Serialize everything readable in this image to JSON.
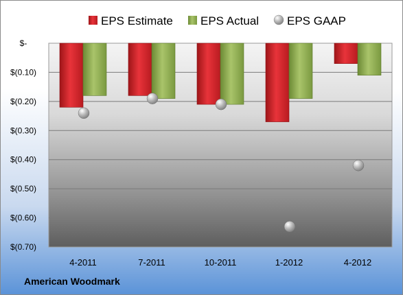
{
  "company": "American Woodmark",
  "chart_data": {
    "type": "bar",
    "categories": [
      "4-2011",
      "7-2011",
      "10-2011",
      "1-2012",
      "4-2012"
    ],
    "series": [
      {
        "name": "EPS Estimate",
        "kind": "bar",
        "values": [
          -0.22,
          -0.18,
          -0.21,
          -0.27,
          -0.07
        ],
        "color": "#d42027"
      },
      {
        "name": "EPS Actual",
        "kind": "bar",
        "values": [
          -0.18,
          -0.19,
          -0.21,
          -0.19,
          -0.11
        ],
        "color": "#8fae4f"
      },
      {
        "name": "EPS GAAP",
        "kind": "scatter",
        "values": [
          -0.24,
          -0.19,
          -0.21,
          -0.63,
          -0.42
        ],
        "color": "#a8a8a8"
      }
    ],
    "y_ticks": [
      {
        "value": 0,
        "label": "$-"
      },
      {
        "value": -0.1,
        "label": "$(0.10)"
      },
      {
        "value": -0.2,
        "label": "$(0.20)"
      },
      {
        "value": -0.3,
        "label": "$(0.30)"
      },
      {
        "value": -0.4,
        "label": "$(0.40)"
      },
      {
        "value": -0.5,
        "label": "$(0.50)"
      },
      {
        "value": -0.6,
        "label": "$(0.60)"
      },
      {
        "value": -0.7,
        "label": "$(0.70)"
      }
    ],
    "ylim": [
      -0.7,
      0
    ],
    "grid": true,
    "legend_position": "top"
  }
}
